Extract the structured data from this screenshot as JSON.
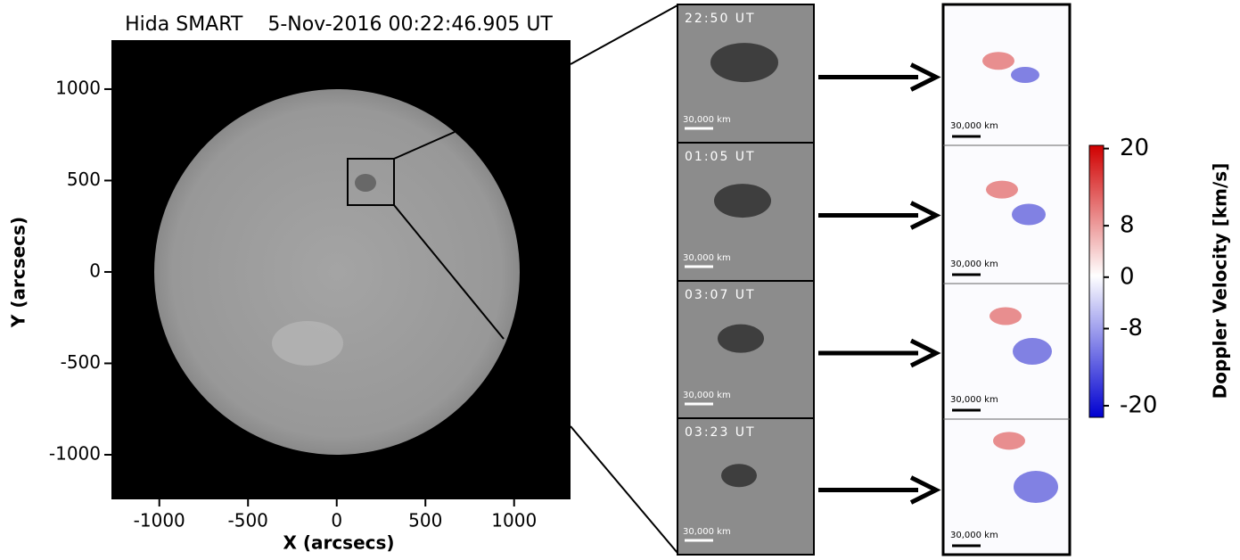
{
  "sun_panel": {
    "title": "Hida SMART    5-Nov-2016 00:22:46.905 UT",
    "xlabel": "X (arcsecs)",
    "ylabel": "Y (arcsecs)",
    "xlim": [
      -1270,
      1318
    ],
    "ylim": [
      -1244,
      1268
    ],
    "xticks": [
      -1000,
      -500,
      0,
      500,
      1000
    ],
    "yticks": [
      -1000,
      -500,
      0,
      500,
      1000
    ]
  },
  "halpha_panels": [
    {
      "time": "22:50 UT",
      "scale": "30,000 km"
    },
    {
      "time": "01:05 UT",
      "scale": "30,000 km"
    },
    {
      "time": "03:07 UT",
      "scale": "30,000 km"
    },
    {
      "time": "03:23 UT",
      "scale": "30,000 km"
    }
  ],
  "doppler_panels": [
    {
      "scale": "30,000 km"
    },
    {
      "scale": "30,000 km"
    },
    {
      "scale": "30,000 km"
    },
    {
      "scale": "30,000 km"
    }
  ],
  "colorbar": {
    "label": "Doppler Velocity [km/s]",
    "lim": [
      -21.8,
      20.5
    ],
    "ticks": [
      20,
      8,
      0,
      -8,
      -20
    ]
  }
}
